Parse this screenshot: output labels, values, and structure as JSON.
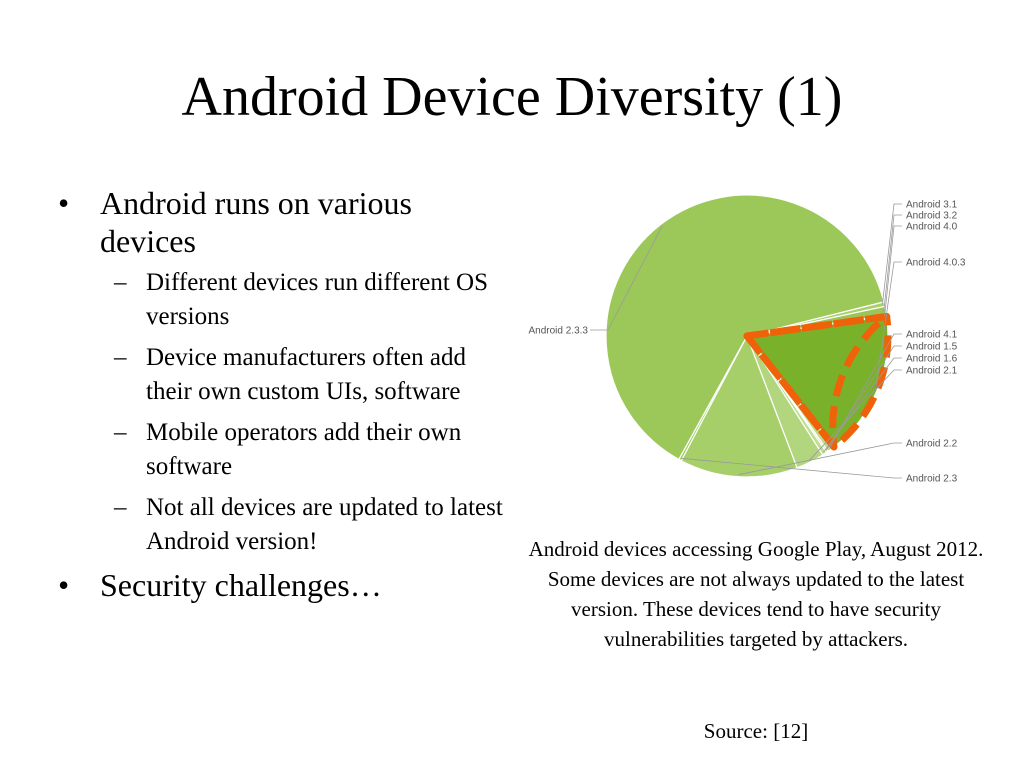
{
  "slide": {
    "title": "Android Device Diversity (1)",
    "bullets": [
      {
        "marker": "•",
        "text": "Android runs on various devices",
        "sub": [
          {
            "marker": "–",
            "text": "Different devices run different OS versions"
          },
          {
            "marker": "–",
            "text": "Device manufacturers often add their own custom UIs, software"
          },
          {
            "marker": "–",
            "text": "Mobile operators add their own software"
          },
          {
            "marker": "–",
            "text": "Not all devices are updated to latest Android version!"
          }
        ]
      },
      {
        "marker": "•",
        "text": "Security challenges…",
        "sub": []
      }
    ],
    "caption": "Android devices accessing Google Play, August 2012. Some devices are not always updated to the latest version. These devices tend to have security vulnerabilities targeted by attackers.",
    "source": "Source: [12]"
  },
  "chart_data": {
    "type": "pie",
    "title": "",
    "slices": [
      {
        "label": "Android 3.1",
        "value": 0.5,
        "color": "#a9d06a"
      },
      {
        "label": "Android 3.2",
        "value": 1.0,
        "color": "#9bc558"
      },
      {
        "label": "Android 4.0",
        "value": 0.1,
        "color": "#8fbf4a"
      },
      {
        "label": "Android 4.0.3",
        "value": 15.9,
        "color": "#79b22a"
      },
      {
        "label": "Android 4.1",
        "value": 0.8,
        "color": "#bddc8d"
      },
      {
        "label": "Android 1.5",
        "value": 0.2,
        "color": "#c4df98"
      },
      {
        "label": "Android 1.6",
        "value": 0.5,
        "color": "#c0dd92"
      },
      {
        "label": "Android 2.1",
        "value": 3.1,
        "color": "#b2d67d"
      },
      {
        "label": "Android 2.2",
        "value": 12.9,
        "color": "#a7cf69"
      },
      {
        "label": "Android 2.3",
        "value": 0.3,
        "color": "#a3cd63"
      },
      {
        "label": "Android 2.3.3",
        "value": 60.3,
        "color": "#9cc85a"
      }
    ],
    "highlight": {
      "color": "#f0620a",
      "groups": [
        [
          "Android 4.0.3"
        ],
        [
          "Android 4.1",
          "Android 1.5",
          "Android 1.6",
          "Android 2.1",
          "Android 2.2",
          "Android 2.3",
          "Android 2.3.3",
          "Android 3.1",
          "Android 3.2",
          "Android 4.0"
        ]
      ]
    }
  }
}
